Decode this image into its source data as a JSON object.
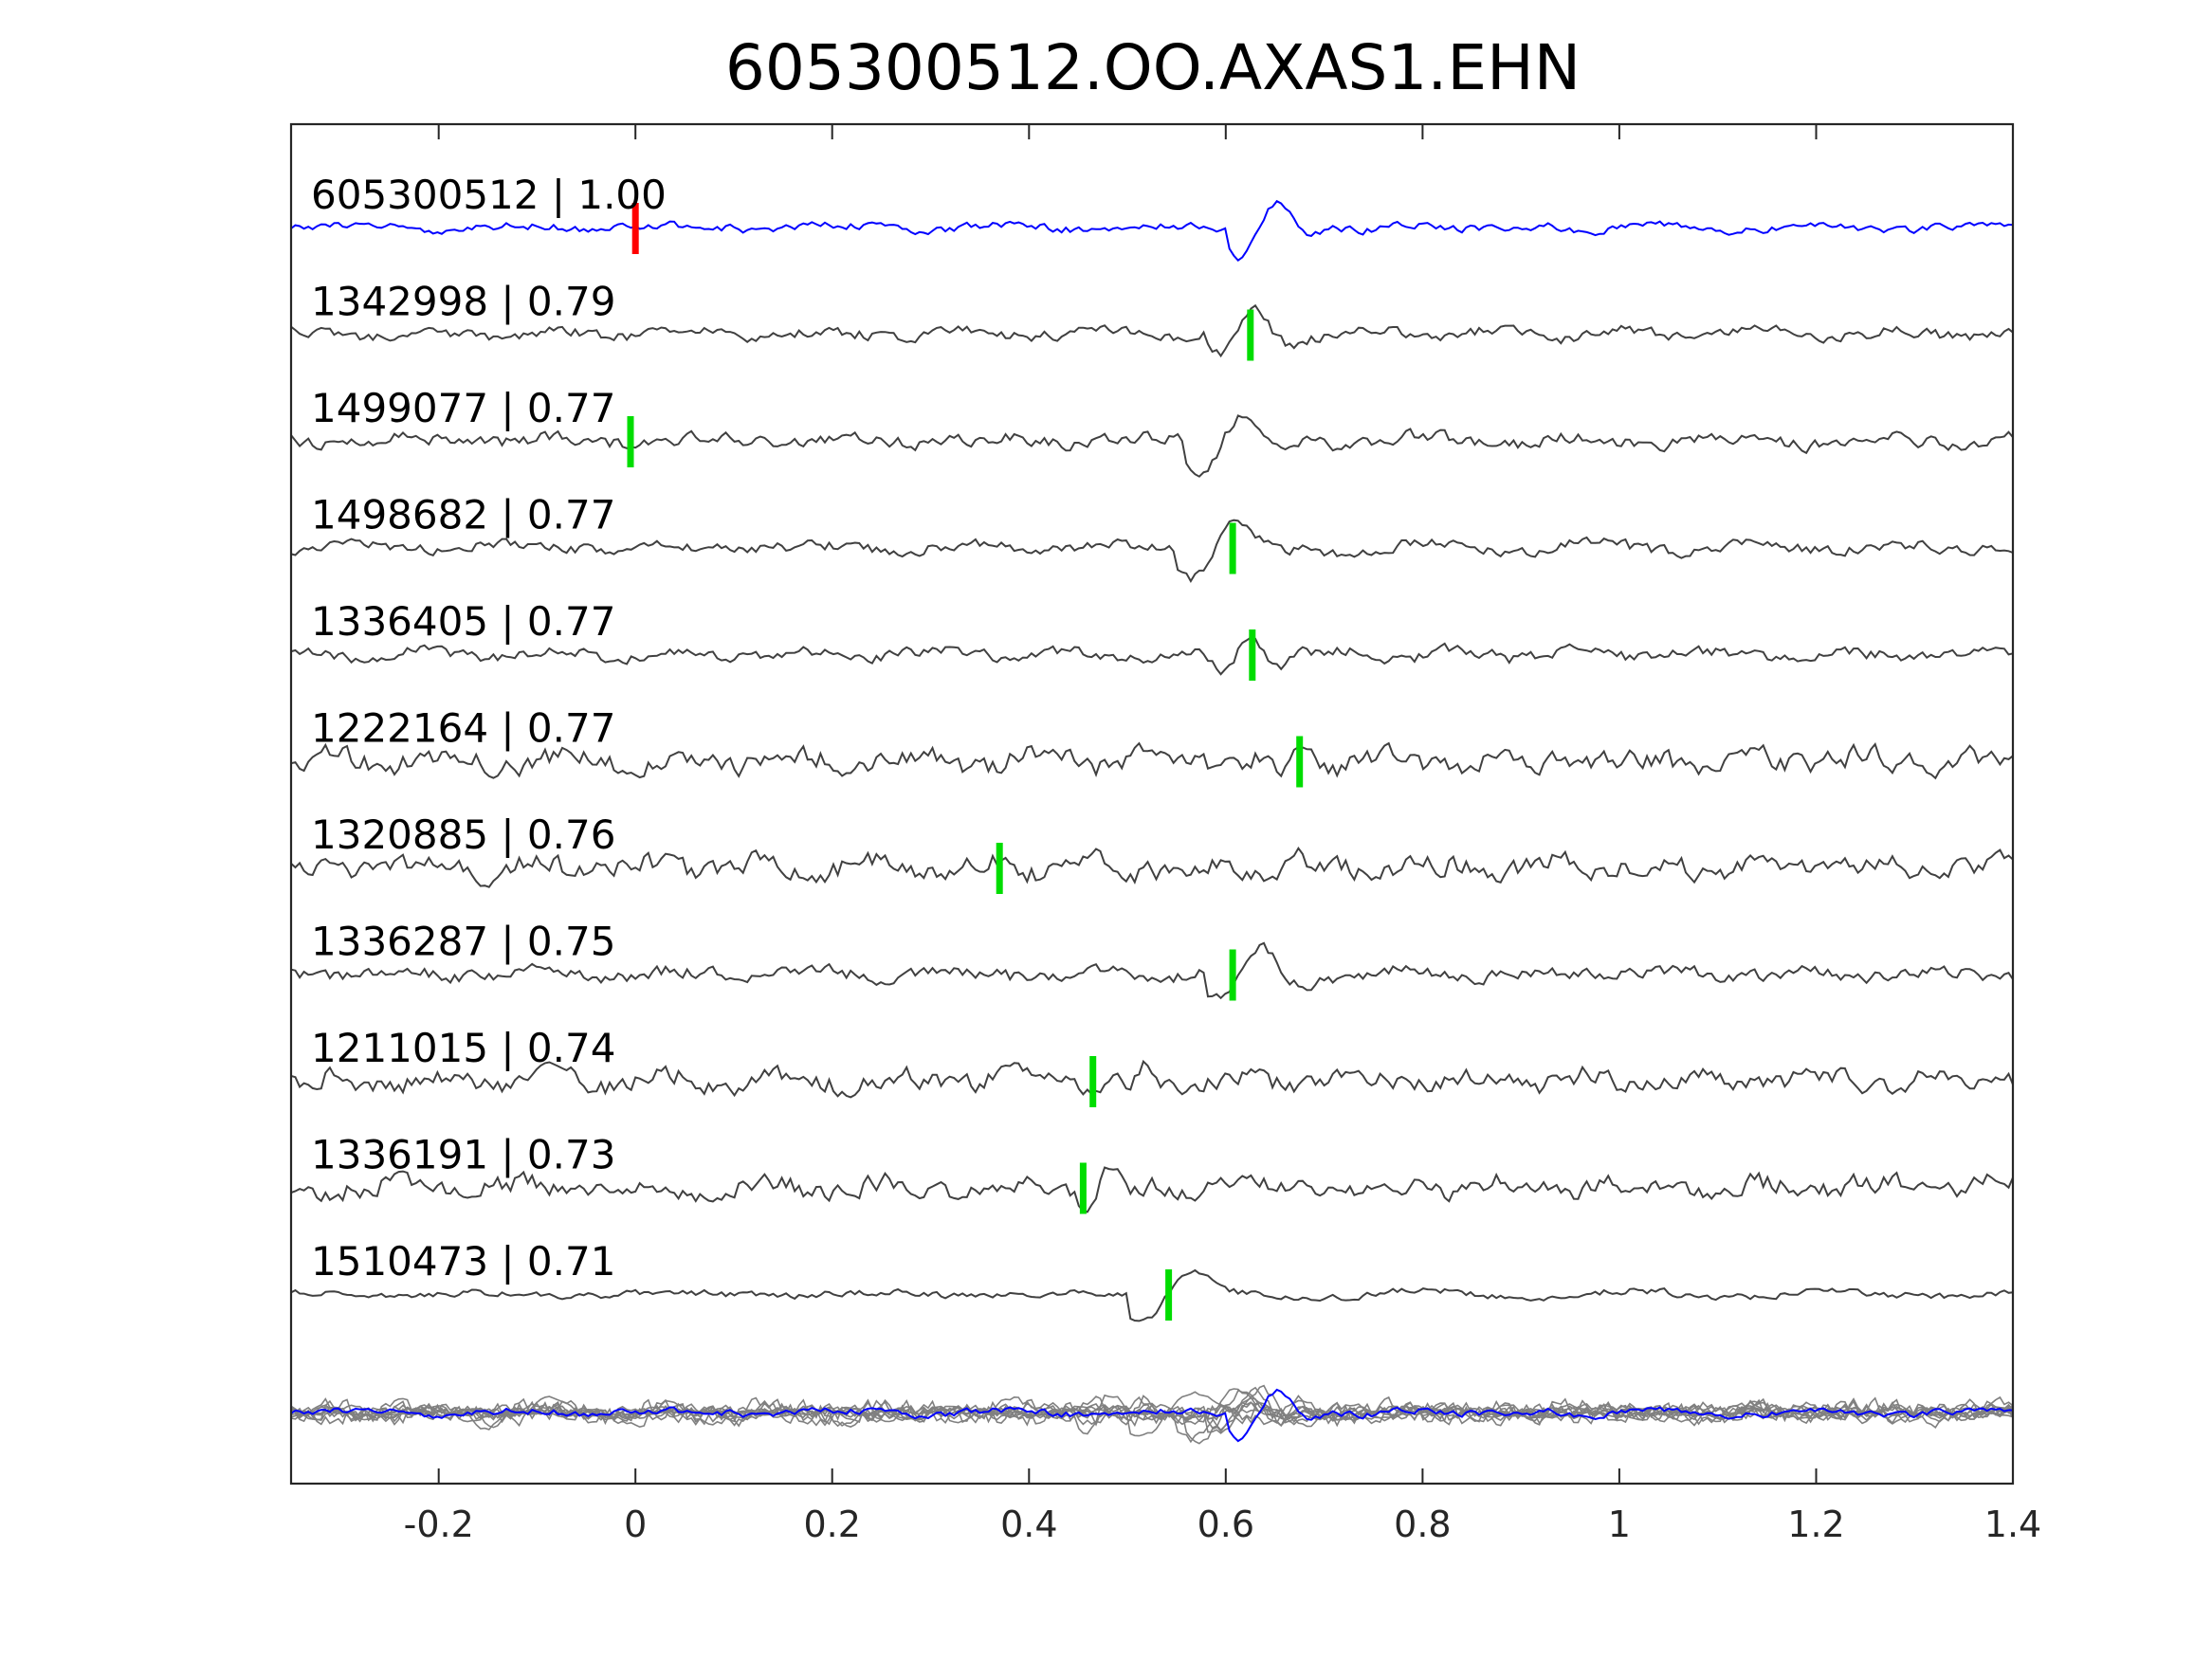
{
  "chart_data": {
    "type": "line",
    "title": "605300512.OO.AXAS1.EHN",
    "xlabel": "",
    "ylabel": "",
    "xlim": [
      -0.35,
      1.4
    ],
    "xticks": [
      -0.2,
      0,
      0.2,
      0.4,
      0.6,
      0.8,
      1,
      1.2,
      1.4
    ],
    "xtick_labels": [
      "-0.2",
      "0",
      "0.2",
      "0.4",
      "0.6",
      "0.8",
      "1",
      "1.2",
      "1.4"
    ],
    "grid": false,
    "colors": {
      "template": "#0000ff",
      "trace": "#404040",
      "stack": "#808080",
      "template_pick": "#ff0000",
      "pick": "#00dd00",
      "axis": "#262626"
    },
    "traces": [
      {
        "id": "605300512",
        "cc": "1.00",
        "label": "605300512 | 1.00",
        "pick": 0.0,
        "pick_color": "#ff0000",
        "template": true,
        "seed": 11,
        "noise": 0.22,
        "onset": 0.62,
        "env": 0.9,
        "period": 0.075,
        "freq": 38
      },
      {
        "id": "1342998",
        "cc": "0.79",
        "label": "1342998 | 0.79",
        "pick": 0.625,
        "pick_color": "#00dd00",
        "template": false,
        "seed": 23,
        "noise": 0.3,
        "onset": 0.6,
        "env": 0.75,
        "period": 0.07,
        "freq": 46
      },
      {
        "id": "1499077",
        "cc": "0.77",
        "label": "1499077 | 0.77",
        "pick": -0.005,
        "pick_color": "#00dd00",
        "template": false,
        "seed": 37,
        "noise": 0.35,
        "onset": 0.58,
        "env": 1.0,
        "period": 0.09,
        "freq": 42
      },
      {
        "id": "1498682",
        "cc": "0.77",
        "label": "1498682 | 0.77",
        "pick": 0.607,
        "pick_color": "#00dd00",
        "template": false,
        "seed": 41,
        "noise": 0.3,
        "onset": 0.57,
        "env": 1.0,
        "period": 0.1,
        "freq": 40
      },
      {
        "id": "1336405",
        "cc": "0.77",
        "label": "1336405 | 0.77",
        "pick": 0.627,
        "pick_color": "#00dd00",
        "template": false,
        "seed": 53,
        "noise": 0.32,
        "onset": 0.6,
        "env": 0.65,
        "period": 0.06,
        "freq": 48
      },
      {
        "id": "1222164",
        "cc": "0.77",
        "label": "1222164 | 0.77",
        "pick": 0.675,
        "pick_color": "#00dd00",
        "template": false,
        "seed": 67,
        "noise": 0.6,
        "onset": 0.66,
        "env": 0.45,
        "period": 0.05,
        "freq": 52
      },
      {
        "id": "1320885",
        "cc": "0.76",
        "label": "1320885 | 0.76",
        "pick": 0.37,
        "pick_color": "#00dd00",
        "template": false,
        "seed": 71,
        "noise": 0.6,
        "onset": 0.65,
        "env": 0.55,
        "period": 0.05,
        "freq": 55
      },
      {
        "id": "1336287",
        "cc": "0.75",
        "label": "1336287 | 0.75",
        "pick": 0.607,
        "pick_color": "#00dd00",
        "template": false,
        "seed": 83,
        "noise": 0.35,
        "onset": 0.6,
        "env": 0.95,
        "period": 0.085,
        "freq": 44
      },
      {
        "id": "1211015",
        "cc": "0.74",
        "label": "1211015 | 0.74",
        "pick": 0.465,
        "pick_color": "#00dd00",
        "template": false,
        "seed": 97,
        "noise": 0.55,
        "onset": 0.5,
        "env": 0.35,
        "period": 0.05,
        "freq": 54
      },
      {
        "id": "1336191",
        "cc": "0.73",
        "label": "1336191 | 0.73",
        "pick": 0.455,
        "pick_color": "#00dd00",
        "template": false,
        "seed": 101,
        "noise": 0.55,
        "onset": 0.46,
        "env": 0.45,
        "period": 0.055,
        "freq": 50
      },
      {
        "id": "1510473",
        "cc": "0.71",
        "label": "1510473 | 0.71",
        "pick": 0.542,
        "pick_color": "#00dd00",
        "template": false,
        "seed": 113,
        "noise": 0.18,
        "onset": 0.52,
        "env": 1.0,
        "period": 0.12,
        "freq": 32
      }
    ]
  }
}
